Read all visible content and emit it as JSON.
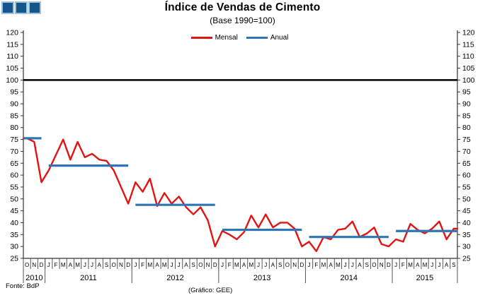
{
  "header": {
    "title": "Índice de Vendas de Cimento",
    "subtitle": "(Base 1990=100)"
  },
  "legend": [
    {
      "label": "Mensal",
      "color": "#e11414"
    },
    {
      "label": "Anual",
      "color": "#2e75b6"
    }
  ],
  "footer": {
    "source": "Fonte: BdP",
    "credit": "(Gráfico: GEE)"
  },
  "logo": {
    "squares": 3,
    "fill": "#14568c",
    "border": "#9cc2de"
  },
  "chart_data": {
    "type": "line",
    "title": "Índice de Vendas de Cimento",
    "subtitle": "(Base 1990=100)",
    "grid": false,
    "legend_position": "top-center",
    "y_axis": {
      "min": 25,
      "max": 120,
      "step": 5,
      "labels_on_both_sides": true,
      "ticks": [
        25,
        30,
        35,
        40,
        45,
        50,
        55,
        60,
        65,
        70,
        75,
        80,
        85,
        90,
        95,
        100,
        105,
        110,
        115,
        120
      ]
    },
    "reference_line": {
      "value": 100,
      "label": "Base 1990=100",
      "color": "#000000"
    },
    "x_axis": {
      "month_letters": [
        "O",
        "N",
        "D",
        "J",
        "F",
        "M",
        "A",
        "M",
        "J",
        "J",
        "A",
        "S",
        "O",
        "N",
        "D",
        "J",
        "F",
        "M",
        "A",
        "M",
        "J",
        "J",
        "A",
        "S",
        "O",
        "N",
        "D",
        "J",
        "F",
        "M",
        "A",
        "M",
        "J",
        "J",
        "A",
        "S",
        "O",
        "N",
        "D",
        "J",
        "F",
        "M",
        "A",
        "M",
        "J",
        "J",
        "A",
        "S",
        "O",
        "N",
        "D",
        "J",
        "F",
        "M",
        "A",
        "M",
        "J",
        "J",
        "A",
        "S"
      ],
      "years": [
        {
          "label": "2010",
          "months": 3
        },
        {
          "label": "2011",
          "months": 12
        },
        {
          "label": "2012",
          "months": 12
        },
        {
          "label": "2013",
          "months": 12
        },
        {
          "label": "2014",
          "months": 12
        },
        {
          "label": "2015",
          "months": 9
        }
      ]
    },
    "series": [
      {
        "name": "Mensal",
        "type": "line",
        "color": "#e11414",
        "values": [
          75.5,
          74,
          57,
          62,
          68.5,
          75,
          66.5,
          74,
          67.5,
          69,
          66.5,
          66,
          62,
          55,
          48,
          57,
          53,
          58.5,
          47,
          52.5,
          48,
          51,
          46.5,
          43.5,
          46.5,
          41,
          30,
          36.5,
          35,
          33,
          36,
          43,
          38,
          43.5,
          38,
          40,
          40,
          37.5,
          30,
          32,
          28,
          34,
          33,
          37,
          37.5,
          40.5,
          34,
          35.5,
          38,
          31,
          30,
          33,
          32,
          39.5,
          37,
          35.5,
          37.5,
          40.5,
          33,
          37.5
        ]
      },
      {
        "name": "Anual",
        "type": "segments",
        "color": "#2e75b6",
        "segments": [
          {
            "year": "2010",
            "value": 75.5,
            "from": -0.5,
            "to": 2
          },
          {
            "year": "2011",
            "value": 64,
            "from": 3,
            "to": 14
          },
          {
            "year": "2012",
            "value": 47.5,
            "from": 15,
            "to": 26
          },
          {
            "year": "2013",
            "value": 37,
            "from": 27,
            "to": 38
          },
          {
            "year": "2014",
            "value": 34,
            "from": 39,
            "to": 50
          },
          {
            "year": "2015",
            "value": 36.5,
            "from": 51,
            "to": 59.5
          }
        ]
      }
    ]
  }
}
